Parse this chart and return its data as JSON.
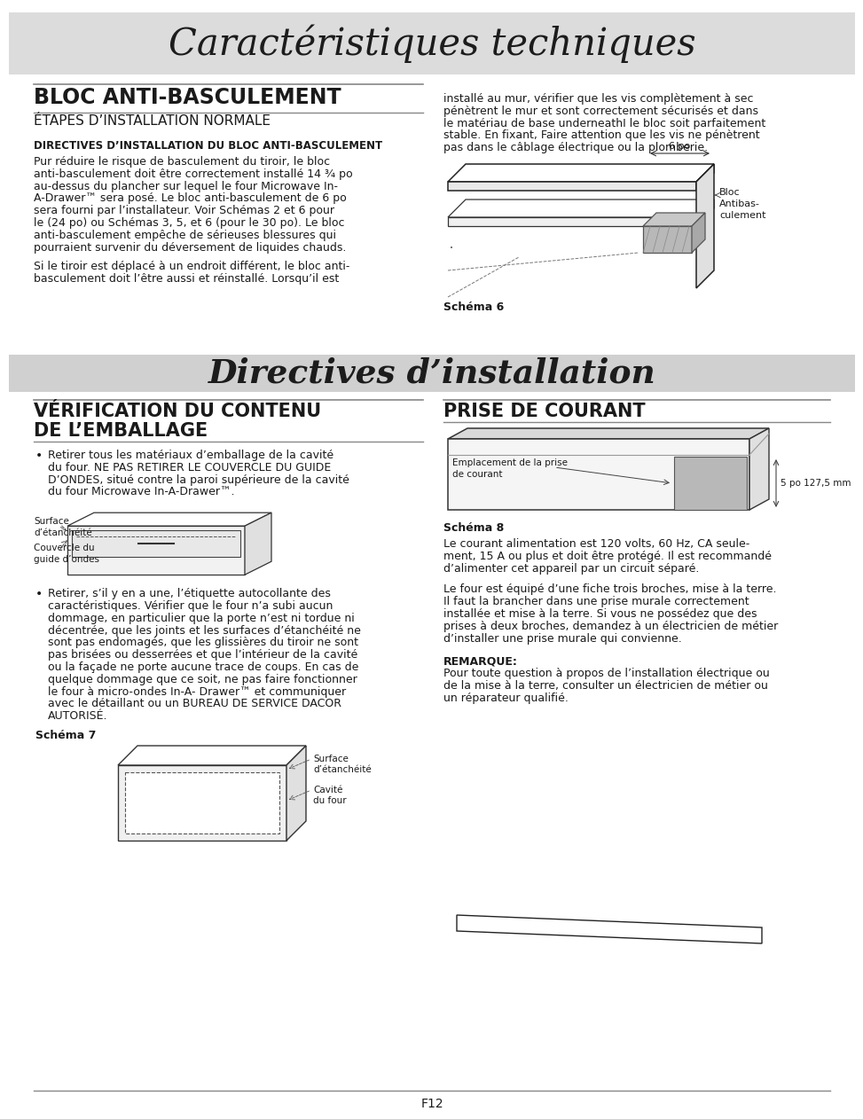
{
  "bg_color": "#ffffff",
  "header_bg": "#dcdcdc",
  "header2_bg": "#d0d0d0",
  "page_title": "Caractéristiques techniques",
  "section1_title": "BLOC ANTI-BASCULEMENT",
  "section1_sub": "ÉTAPES D’INSTALLATION NORMALE",
  "section1_bold": "DIRECTIVES D’INSTALLATION DU BLOC ANTI-BASCULEMENT",
  "section1_body1": "Pur réduire le risque de basculement du tiroir, le bloc\nanti-basculement doit être correctement installé 14 ¾ po\nau-dessus du plancher sur lequel le four Microwave In-\nA-Drawer™ sera posé. Le bloc anti-basculement de 6 po\nsera fourni par l’installateur. Voir Schémas 2 et 6 pour\nle (24 po) ou Schémas 3, 5, et 6 (pour le 30 po). Le bloc\nanti-basculement empêche de sérieuses blessures qui\npourraient survenir du déversement de liquides chauds.",
  "section1_body2": "Si le tiroir est déplacé à un endroit différent, le bloc anti-\nbasculement doit l’être aussi et réinstallé. Lorsqu’il est",
  "section1_right": "installé au mur, vérifier que les vis complètement à sec\npénètrent le mur et sont correctement sécurisés et dans\nle matériau de base underneathI le bloc soit parfaitement\nstable. En fixant, Faire attention que les vis ne pénètrent\npas dans le câblage électrique ou la plomberie.",
  "schema6_label": "Schéma 6",
  "bloc_label": "Bloc\nAntibas-\nculement",
  "dim_label": "6 po",
  "section2_title": "Directives d’installation",
  "section3_title_line1": "VÉRIFICATION DU CONTENU",
  "section3_title_line2": "DE L’EMBALLAGE",
  "section4_title": "PRISE DE COURANT",
  "bullet1_text": "Retirer tous les matériaux d’emballage de la cavité\ndu four. NE PAS RETIRER LE COUVERCLE DU GUIDE\nD’ONDES, situé contre la paroi supérieure de la cavité\ndu four Microwave In-A-Drawer™.",
  "schema7_label": "Schéma 7",
  "surface_label": "Surface\nd’étanchéité",
  "couvercle_label": "Couvercle du\nguide d’ondes",
  "emplacement_label": "Emplacement de la prise\nde courant",
  "dim2_label": "5 po 127,5 mm",
  "schema8_label": "Schéma 8",
  "prise_body1": "Le courant alimentation est 120 volts, 60 Hz, CA seule-\nment, 15 A ou plus et doit être protégé. Il est recommandé\nd’alimenter cet appareil par un circuit séparé.",
  "prise_body2": "Le four est équipé d’une fiche trois broches, mise à la terre.\nIl faut la brancher dans une prise murale correctement\ninstallée et mise à la terre. Si vous ne possédez que des\nprises à deux broches, demandez à un électricien de métier\nd’installer une prise murale qui convienne.",
  "remarque_label": "REMARQUE:",
  "remarque_body": "Pour toute question à propos de l’installation électrique ou\nde la mise à la terre, consulter un électricien de métier ou\nun réparateur qualifié.",
  "bullet2_text": "Retirer, s’il y en a une, l’étiquette autocollante des\ncaractéristiques. Vérifier que le four n’a subi aucun\ndommage, en particulier que la porte n’est ni tordue ni\ndécentrée, que les joints et les surfaces d’étanchéité ne\nsont pas endomagés, que les glissières du tiroir ne sont\npas brisées ou desserrées et que l’intérieur de la cavité\nou la façade ne porte aucune trace de coups. En cas de\nquelque dommage que ce soit, ne pas faire fonctionner\nle four à micro-ondes In-A- Drawer™ et communiquer\navec le détaillant ou un BUREAU DE SERVICE DACOR\nAUTORISÉ.",
  "cavite_label": "Cavité\ndu four",
  "surface2_label": "Surface\nd’étanchéité",
  "footer": "F12",
  "lm": 28,
  "rm": 926,
  "col_div": 477,
  "lm2": 490
}
